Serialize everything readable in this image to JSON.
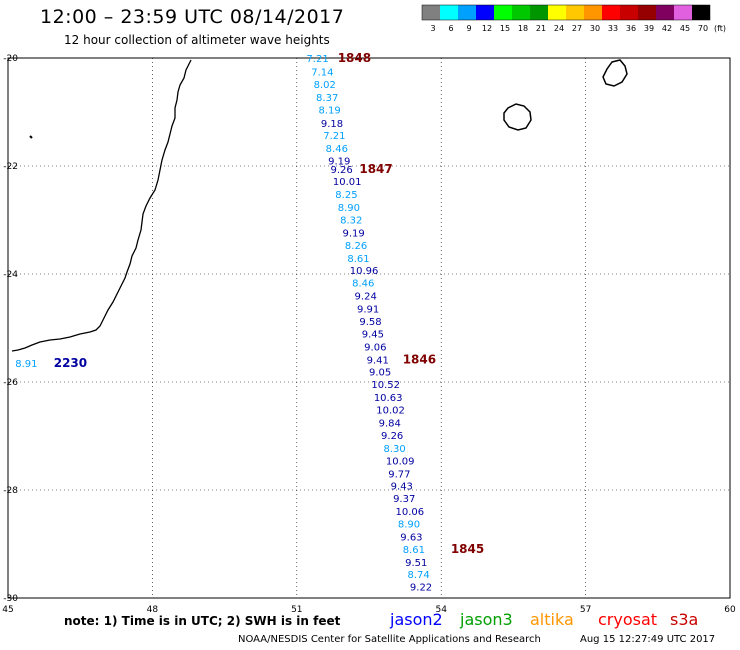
{
  "header": {
    "title": "12:00 – 23:59 UTC 08/14/2017",
    "subtitle": "12 hour collection of altimeter wave heights"
  },
  "colorbar": {
    "unit_label": "(ft)",
    "bins": [
      {
        "label": "3",
        "color": "#808080"
      },
      {
        "label": "6",
        "color": "#00ffff"
      },
      {
        "label": "9",
        "color": "#00a0ff"
      },
      {
        "label": "12",
        "color": "#0000ff"
      },
      {
        "label": "15",
        "color": "#00ff00"
      },
      {
        "label": "18",
        "color": "#00c800"
      },
      {
        "label": "21",
        "color": "#009600"
      },
      {
        "label": "24",
        "color": "#ffff00"
      },
      {
        "label": "27",
        "color": "#ffc800"
      },
      {
        "label": "30",
        "color": "#ff9600"
      },
      {
        "label": "33",
        "color": "#ff0000"
      },
      {
        "label": "36",
        "color": "#c80000"
      },
      {
        "label": "39",
        "color": "#960000"
      },
      {
        "label": "42",
        "color": "#800060"
      },
      {
        "label": "45",
        "color": "#e060e0"
      },
      {
        "label": "70",
        "color": "#000000"
      }
    ]
  },
  "map": {
    "lon_range": [
      45,
      60
    ],
    "lat_range": [
      -30,
      -20
    ],
    "lon_ticks": [
      "45",
      "48",
      "51",
      "54",
      "57",
      "60"
    ],
    "lat_ticks": [
      "-20",
      "-22",
      "-24",
      "-26",
      "-28",
      "-30"
    ],
    "grid": "dotted"
  },
  "colors": {
    "cyan_swh": "#00a0ff",
    "blue_swh": "#0000a0",
    "time_label": "#800000",
    "coast": "#000000"
  },
  "tracks": [
    {
      "name": "main_track",
      "points": [
        {
          "lon": 51.2,
          "lat": -20.0,
          "value": "7.21",
          "color_key": "cyan_swh"
        },
        {
          "lon": 51.3,
          "lat": -20.25,
          "value": "7.14",
          "color_key": "cyan_swh"
        },
        {
          "lon": 51.35,
          "lat": -20.48,
          "value": "8.02",
          "color_key": "cyan_swh"
        },
        {
          "lon": 51.4,
          "lat": -20.72,
          "value": "8.37",
          "color_key": "cyan_swh"
        },
        {
          "lon": 51.45,
          "lat": -20.95,
          "value": "8.19",
          "color_key": "cyan_swh"
        },
        {
          "lon": 51.5,
          "lat": -21.2,
          "value": "9.18",
          "color_key": "blue_swh"
        },
        {
          "lon": 51.55,
          "lat": -21.43,
          "value": "7.21",
          "color_key": "cyan_swh"
        },
        {
          "lon": 51.6,
          "lat": -21.67,
          "value": "8.46",
          "color_key": "cyan_swh"
        },
        {
          "lon": 51.65,
          "lat": -21.9,
          "value": "9.19",
          "color_key": "blue_swh"
        },
        {
          "lon": 51.7,
          "lat": -22.06,
          "value": "9.26",
          "color_key": "blue_swh"
        },
        {
          "lon": 51.75,
          "lat": -22.28,
          "value": "10.01",
          "color_key": "blue_swh"
        },
        {
          "lon": 51.8,
          "lat": -22.52,
          "value": "8.25",
          "color_key": "cyan_swh"
        },
        {
          "lon": 51.85,
          "lat": -22.76,
          "value": "8.90",
          "color_key": "cyan_swh"
        },
        {
          "lon": 51.9,
          "lat": -22.99,
          "value": "8.32",
          "color_key": "cyan_swh"
        },
        {
          "lon": 51.95,
          "lat": -23.23,
          "value": "9.19",
          "color_key": "blue_swh"
        },
        {
          "lon": 52.0,
          "lat": -23.46,
          "value": "8.26",
          "color_key": "cyan_swh"
        },
        {
          "lon": 52.05,
          "lat": -23.7,
          "value": "8.61",
          "color_key": "cyan_swh"
        },
        {
          "lon": 52.1,
          "lat": -23.93,
          "value": "10.96",
          "color_key": "blue_swh"
        },
        {
          "lon": 52.15,
          "lat": -24.16,
          "value": "8.46",
          "color_key": "cyan_swh"
        },
        {
          "lon": 52.2,
          "lat": -24.4,
          "value": "9.24",
          "color_key": "blue_swh"
        },
        {
          "lon": 52.25,
          "lat": -24.64,
          "value": "9.91",
          "color_key": "blue_swh"
        },
        {
          "lon": 52.3,
          "lat": -24.87,
          "value": "9.58",
          "color_key": "blue_swh"
        },
        {
          "lon": 52.35,
          "lat": -25.1,
          "value": "9.45",
          "color_key": "blue_swh"
        },
        {
          "lon": 52.4,
          "lat": -25.34,
          "value": "9.06",
          "color_key": "blue_swh"
        },
        {
          "lon": 52.45,
          "lat": -25.58,
          "value": "9.41",
          "color_key": "blue_swh"
        },
        {
          "lon": 52.5,
          "lat": -25.81,
          "value": "9.05",
          "color_key": "blue_swh"
        },
        {
          "lon": 52.55,
          "lat": -26.04,
          "value": "10.52",
          "color_key": "blue_swh"
        },
        {
          "lon": 52.6,
          "lat": -26.28,
          "value": "10.63",
          "color_key": "blue_swh"
        },
        {
          "lon": 52.65,
          "lat": -26.51,
          "value": "10.02",
          "color_key": "blue_swh"
        },
        {
          "lon": 52.7,
          "lat": -26.75,
          "value": "9.84",
          "color_key": "blue_swh"
        },
        {
          "lon": 52.75,
          "lat": -26.98,
          "value": "9.26",
          "color_key": "blue_swh"
        },
        {
          "lon": 52.8,
          "lat": -27.22,
          "value": "8.30",
          "color_key": "cyan_swh"
        },
        {
          "lon": 52.85,
          "lat": -27.45,
          "value": "10.09",
          "color_key": "blue_swh"
        },
        {
          "lon": 52.9,
          "lat": -27.69,
          "value": "9.77",
          "color_key": "blue_swh"
        },
        {
          "lon": 52.95,
          "lat": -27.92,
          "value": "9.43",
          "color_key": "blue_swh"
        },
        {
          "lon": 53.0,
          "lat": -28.15,
          "value": "9.37",
          "color_key": "blue_swh"
        },
        {
          "lon": 53.05,
          "lat": -28.39,
          "value": "10.06",
          "color_key": "blue_swh"
        },
        {
          "lon": 53.1,
          "lat": -28.62,
          "value": "8.90",
          "color_key": "cyan_swh"
        },
        {
          "lon": 53.15,
          "lat": -28.86,
          "value": "9.63",
          "color_key": "blue_swh"
        },
        {
          "lon": 53.2,
          "lat": -29.09,
          "value": "8.61",
          "color_key": "cyan_swh"
        },
        {
          "lon": 53.25,
          "lat": -29.33,
          "value": "9.51",
          "color_key": "blue_swh"
        },
        {
          "lon": 53.3,
          "lat": -29.56,
          "value": "8.74",
          "color_key": "cyan_swh"
        },
        {
          "lon": 53.35,
          "lat": -29.79,
          "value": "9.22",
          "color_key": "blue_swh"
        }
      ]
    },
    {
      "name": "coastal_point",
      "points": [
        {
          "lon": 45.15,
          "lat": -25.65,
          "value": "8.91",
          "color_key": "cyan_swh"
        }
      ]
    }
  ],
  "time_labels": [
    {
      "lon": 51.85,
      "lat": -20.0,
      "text": "1848",
      "color_key": "time_label"
    },
    {
      "lon": 52.3,
      "lat": -22.06,
      "text": "1847",
      "color_key": "time_label"
    },
    {
      "lon": 53.2,
      "lat": -25.58,
      "text": "1846",
      "color_key": "time_label"
    },
    {
      "lon": 54.2,
      "lat": -29.09,
      "text": "1845",
      "color_key": "time_label"
    },
    {
      "lon": 45.95,
      "lat": -25.65,
      "text": "2230",
      "color_key": "blue_swh"
    }
  ],
  "footer": {
    "note": "note: 1) Time is in UTC; 2) SWH is in feet",
    "satellites": [
      {
        "name": "jason2",
        "color": "#0000ff"
      },
      {
        "name": "jason3",
        "color": "#00a000"
      },
      {
        "name": "altika",
        "color": "#ff9600"
      },
      {
        "name": "cryosat",
        "color": "#ff0000"
      },
      {
        "name": "s3a",
        "color": "#c80000"
      }
    ],
    "credit": "NOAA/NESDIS Center for Satellite Applications and Research",
    "timestamp": "Aug 15 12:27:49 UTC 2017"
  }
}
